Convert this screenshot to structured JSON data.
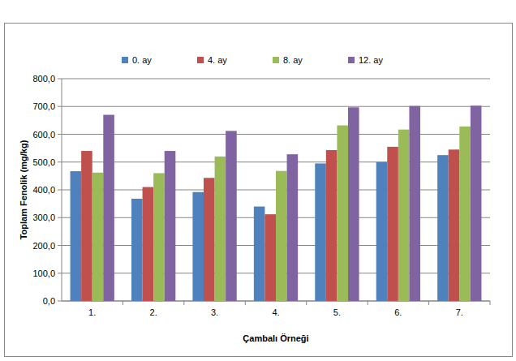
{
  "chart_data": {
    "type": "bar",
    "x_label": "Çambalı Örneği",
    "y_label": "Toplam Fenolik (mg/kg)",
    "categories": [
      "1.",
      "2.",
      "3.",
      "4.",
      "5.",
      "6.",
      "7."
    ],
    "series": [
      {
        "name": "0. ay",
        "color": "#4f81bd",
        "values": [
          467,
          368,
          392,
          340,
          495,
          500,
          525
        ]
      },
      {
        "name": "4. ay",
        "color": "#c0504d",
        "values": [
          540,
          410,
          443,
          312,
          543,
          555,
          545
        ]
      },
      {
        "name": "8. ay",
        "color": "#9bbb59",
        "values": [
          462,
          460,
          520,
          468,
          632,
          617,
          628
        ]
      },
      {
        "name": "12. ay",
        "color": "#8064a2",
        "values": [
          670,
          540,
          612,
          528,
          697,
          702,
          703
        ]
      }
    ],
    "ylim": [
      0,
      800
    ],
    "yticks": [
      {
        "value": 0,
        "label": "0,0"
      },
      {
        "value": 100,
        "label": "100,0"
      },
      {
        "value": 200,
        "label": "200,0"
      },
      {
        "value": 300,
        "label": "300,0"
      },
      {
        "value": 400,
        "label": "400,0"
      },
      {
        "value": 500,
        "label": "500,0"
      },
      {
        "value": 600,
        "label": "600,0"
      },
      {
        "value": 700,
        "label": "700,0"
      },
      {
        "value": 800,
        "label": "800,0"
      }
    ],
    "grid": true,
    "legend": "top"
  }
}
